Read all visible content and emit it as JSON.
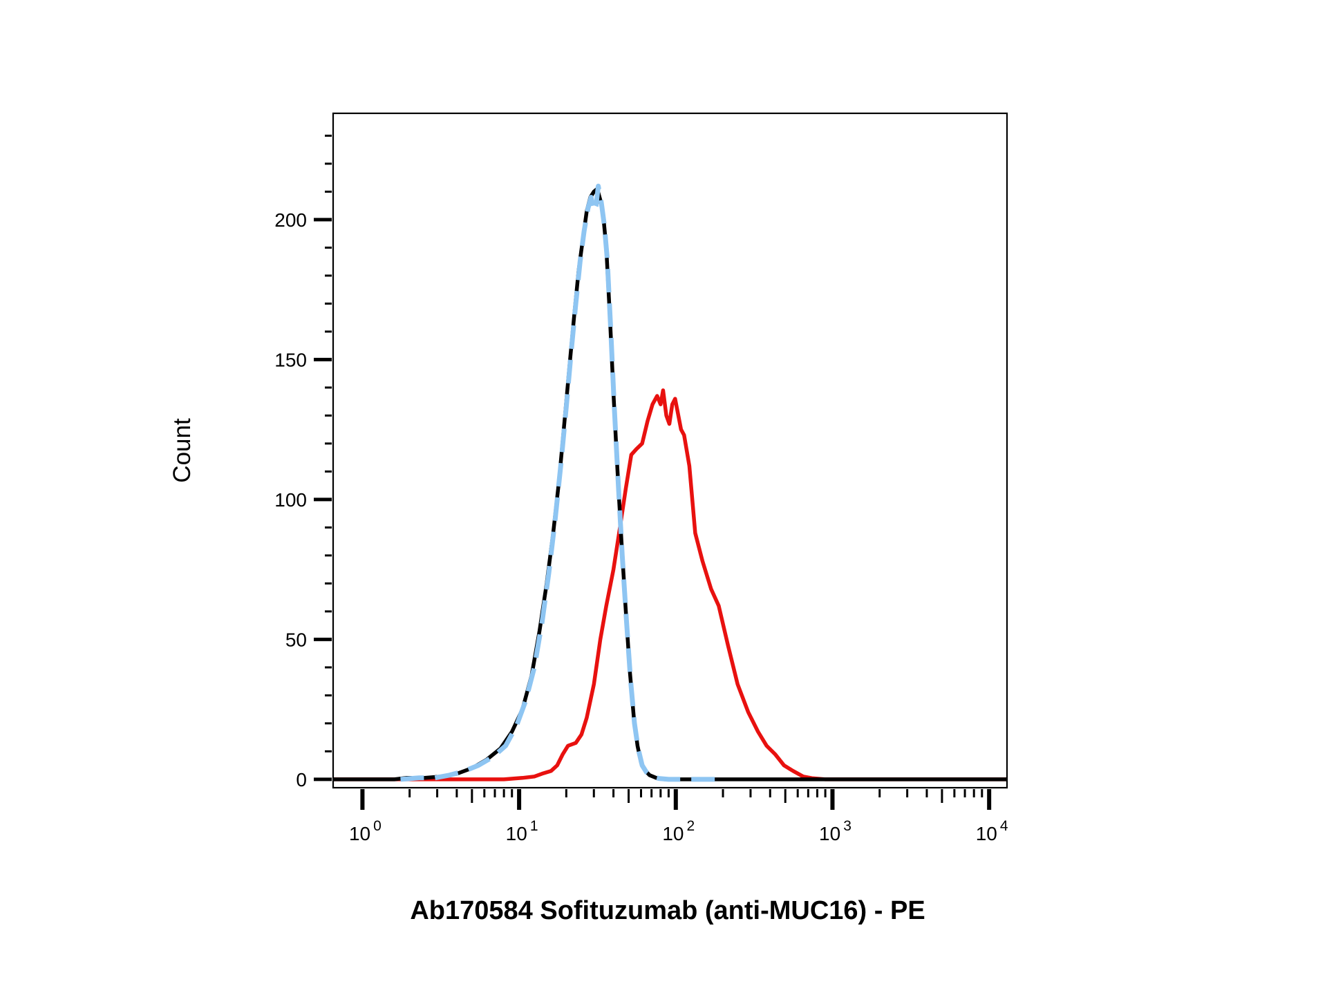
{
  "chart_data": {
    "type": "line",
    "title": "",
    "xlabel": "Ab170584 Sofituzumab (anti-MUC16) - PE",
    "ylabel": "Count",
    "x_scale": "log",
    "xlim": [
      0.65,
      13000
    ],
    "ylim": [
      -3,
      238
    ],
    "y_ticks": [
      0,
      50,
      100,
      150,
      200
    ],
    "y_tick_labels": [
      "0",
      "50",
      "100",
      "150",
      "200"
    ],
    "x_ticks": [
      {
        "value": 1,
        "base": "10",
        "exp": "0"
      },
      {
        "value": 10,
        "base": "10",
        "exp": "1"
      },
      {
        "value": 100,
        "base": "10",
        "exp": "2"
      },
      {
        "value": 1000,
        "base": "10",
        "exp": "3"
      },
      {
        "value": 10000,
        "base": "10",
        "exp": "4"
      }
    ],
    "grid": false,
    "legend": "none",
    "series": [
      {
        "color": "#e8110f",
        "style": "solid",
        "points": [
          [
            0.65,
            0
          ],
          [
            8,
            0
          ],
          [
            10.5,
            0.5
          ],
          [
            12.5,
            1
          ],
          [
            14,
            2
          ],
          [
            16,
            3
          ],
          [
            17.5,
            5
          ],
          [
            19,
            9
          ],
          [
            20.5,
            12
          ],
          [
            23,
            13
          ],
          [
            25,
            16
          ],
          [
            27,
            22
          ],
          [
            30,
            34
          ],
          [
            33,
            50
          ],
          [
            36,
            62
          ],
          [
            40,
            75
          ],
          [
            44,
            90
          ],
          [
            48,
            104
          ],
          [
            52,
            116
          ],
          [
            56,
            118
          ],
          [
            61,
            120
          ],
          [
            66,
            128
          ],
          [
            71,
            134
          ],
          [
            76,
            137
          ],
          [
            80,
            134
          ],
          [
            83,
            139
          ],
          [
            87,
            130
          ],
          [
            91,
            127
          ],
          [
            95,
            134
          ],
          [
            99,
            136
          ],
          [
            103,
            131
          ],
          [
            108,
            125
          ],
          [
            113,
            123
          ],
          [
            122,
            112
          ],
          [
            133,
            88
          ],
          [
            148,
            78
          ],
          [
            168,
            68
          ],
          [
            188,
            62
          ],
          [
            215,
            48
          ],
          [
            248,
            34
          ],
          [
            290,
            24
          ],
          [
            335,
            17
          ],
          [
            380,
            12
          ],
          [
            430,
            9
          ],
          [
            490,
            5
          ],
          [
            560,
            3
          ],
          [
            650,
            1
          ],
          [
            740,
            0.4
          ],
          [
            900,
            0
          ],
          [
            13000,
            0
          ]
        ]
      },
      {
        "color": "#000000",
        "style": "solid",
        "points": [
          [
            0.65,
            0
          ],
          [
            1.6,
            0
          ],
          [
            1.9,
            0.5
          ],
          [
            2.5,
            0.5
          ],
          [
            3.2,
            1
          ],
          [
            4,
            2
          ],
          [
            5,
            4
          ],
          [
            6.2,
            7
          ],
          [
            7.6,
            11
          ],
          [
            9,
            17
          ],
          [
            10.5,
            25
          ],
          [
            12,
            37
          ],
          [
            13.5,
            53
          ],
          [
            15,
            70
          ],
          [
            16.5,
            88
          ],
          [
            18,
            107
          ],
          [
            19.5,
            128
          ],
          [
            21,
            148
          ],
          [
            22.5,
            166
          ],
          [
            24,
            182
          ],
          [
            25.5,
            193
          ],
          [
            27,
            203
          ],
          [
            28.5,
            208
          ],
          [
            30,
            210
          ],
          [
            31.5,
            211
          ],
          [
            33,
            207
          ],
          [
            34.5,
            201
          ],
          [
            36,
            190
          ],
          [
            38,
            165
          ],
          [
            40,
            138
          ],
          [
            42.5,
            110
          ],
          [
            45,
            85
          ],
          [
            48,
            60
          ],
          [
            51,
            38
          ],
          [
            54,
            22
          ],
          [
            57,
            12
          ],
          [
            60,
            6
          ],
          [
            64,
            3
          ],
          [
            68,
            1.5
          ],
          [
            75,
            0.5
          ],
          [
            85,
            0
          ],
          [
            13000,
            0
          ]
        ]
      },
      {
        "color": "#8ec5f2",
        "style": "dashed",
        "points": [
          [
            1.75,
            0
          ],
          [
            2.3,
            0.5
          ],
          [
            2.9,
            0.5
          ],
          [
            3.6,
            1.5
          ],
          [
            4.5,
            3
          ],
          [
            5.5,
            5
          ],
          [
            6.8,
            8
          ],
          [
            8.2,
            12
          ],
          [
            9.6,
            19
          ],
          [
            11,
            28
          ],
          [
            12.5,
            40
          ],
          [
            14,
            56
          ],
          [
            15.5,
            74
          ],
          [
            17,
            93
          ],
          [
            18.5,
            113
          ],
          [
            20,
            133
          ],
          [
            21.5,
            153
          ],
          [
            23,
            170
          ],
          [
            24.5,
            185
          ],
          [
            26,
            196
          ],
          [
            27.5,
            204
          ],
          [
            28.8,
            208
          ],
          [
            30,
            203
          ],
          [
            31,
            205
          ],
          [
            32,
            212
          ],
          [
            33.5,
            206
          ],
          [
            35,
            198
          ],
          [
            36.5,
            186
          ],
          [
            38.5,
            160
          ],
          [
            40.5,
            133
          ],
          [
            43,
            105
          ],
          [
            45.5,
            80
          ],
          [
            48.5,
            56
          ],
          [
            51.5,
            35
          ],
          [
            54.5,
            20
          ],
          [
            57.5,
            11
          ],
          [
            61,
            5
          ],
          [
            65,
            2.5
          ],
          [
            70,
            1
          ],
          [
            78,
            0.3
          ],
          [
            90,
            0
          ],
          [
            140,
            0
          ],
          [
            190,
            0
          ]
        ]
      }
    ]
  }
}
